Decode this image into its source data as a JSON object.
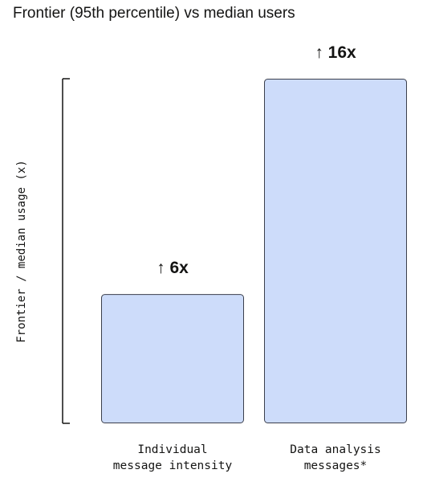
{
  "chart_data": {
    "type": "bar",
    "title": "Frontier (95th percentile) vs median users",
    "xlabel": "",
    "ylabel": "Frontier / median usage (x)",
    "ylim": [
      0,
      16
    ],
    "grid": false,
    "categories": [
      [
        "Individual",
        "message intensity"
      ],
      [
        "Data analysis",
        "messages*"
      ]
    ],
    "values": [
      6,
      16
    ],
    "data_labels": [
      "↑ 6x",
      "↑ 16x"
    ],
    "colors": {
      "bar_fill": "#cddcfa",
      "bar_stroke": "#3b3f4c",
      "axis": "#141413",
      "text": "#141413"
    }
  }
}
